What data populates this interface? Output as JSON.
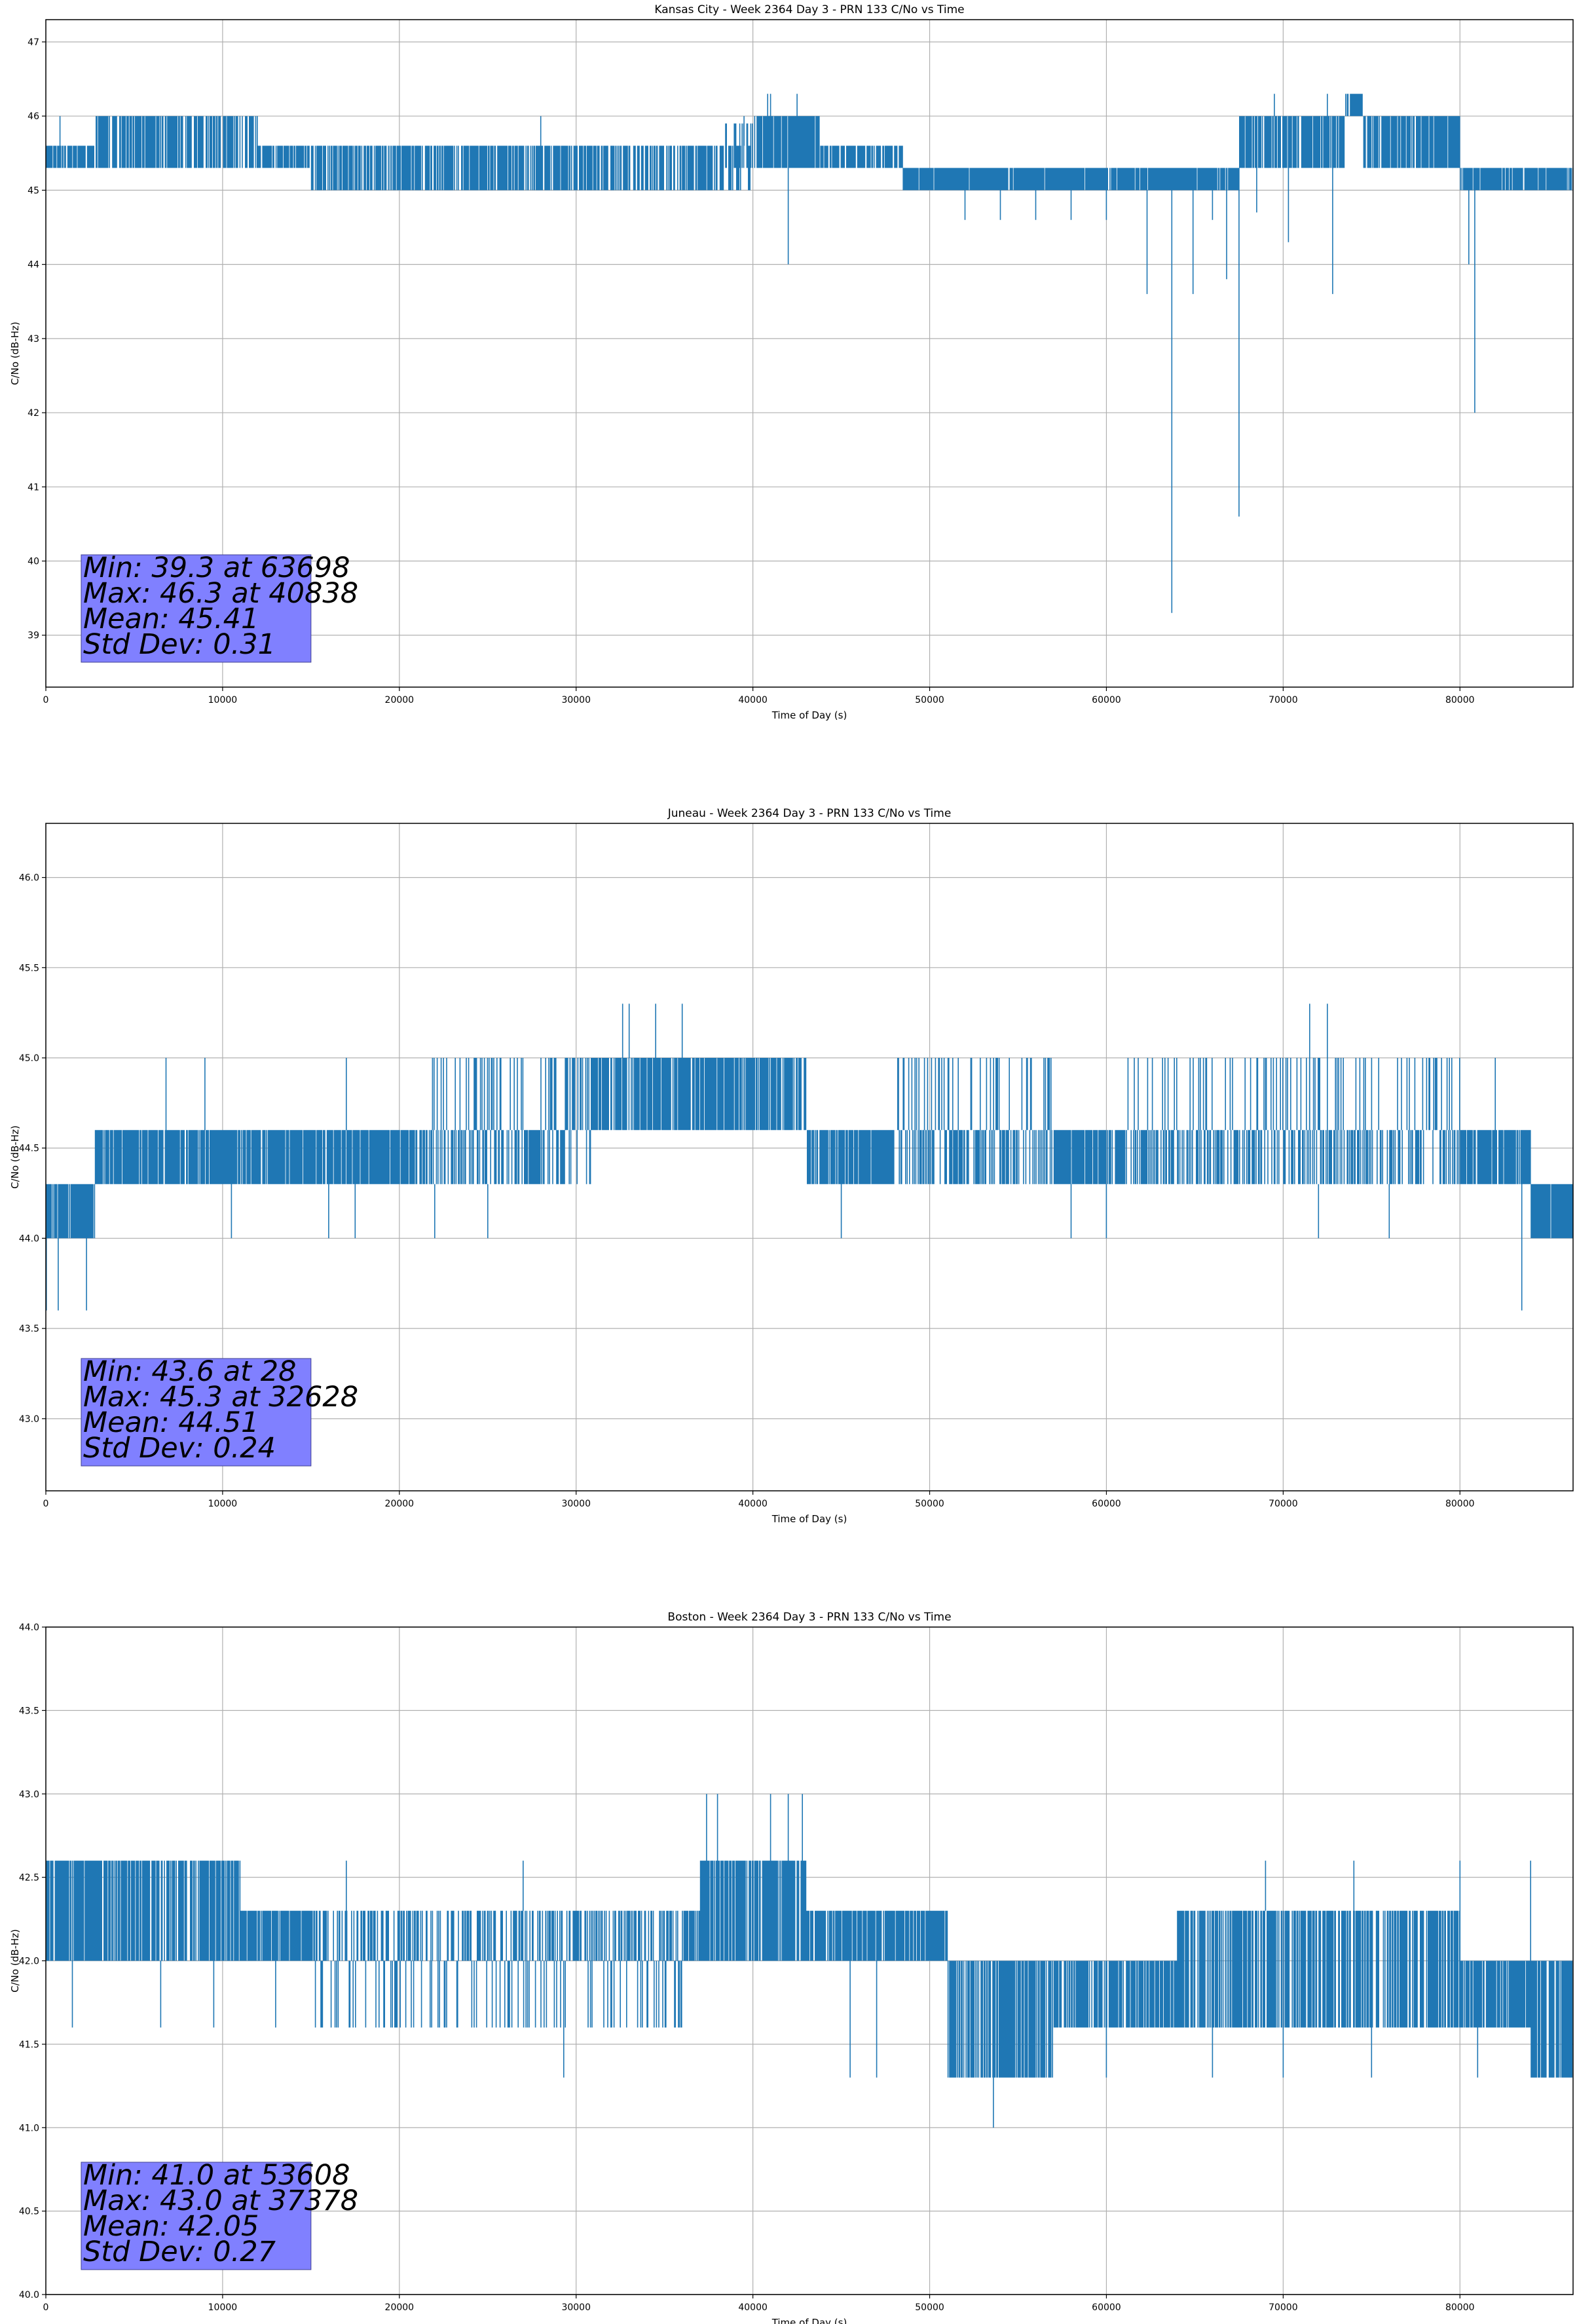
{
  "chart_data": [
    {
      "type": "line",
      "title": "Kansas City - Week 2364 Day 3 - PRN 133 C/No vs Time",
      "xlabel": "Time of Day (s)",
      "ylabel": "C/No (dB-Hz)",
      "xlim": [
        0,
        86400
      ],
      "ylim": [
        38.3,
        47.3
      ],
      "xticks": [
        0,
        10000,
        20000,
        30000,
        40000,
        50000,
        60000,
        70000,
        80000
      ],
      "yticks": [
        39,
        40,
        41,
        42,
        43,
        44,
        45,
        46,
        47
      ],
      "grid": true,
      "color": "#1f77b4",
      "bands": [
        {
          "x": [
            0,
            2800
          ],
          "lo": 45.3,
          "hi": 45.6,
          "dens": 0.8
        },
        {
          "x": [
            2800,
            12000
          ],
          "lo": 45.3,
          "hi": 46.0,
          "dens": 0.75
        },
        {
          "x": [
            12000,
            15000
          ],
          "lo": 45.3,
          "hi": 45.6,
          "dens": 0.85
        },
        {
          "x": [
            15000,
            40000
          ],
          "lo": 45.0,
          "hi": 45.6,
          "dens": 0.7
        },
        {
          "x": [
            38000,
            40000
          ],
          "lo": 45.3,
          "hi": 45.9,
          "dens": 0.6
        },
        {
          "x": [
            40000,
            43800
          ],
          "lo": 45.3,
          "hi": 46.0,
          "dens": 0.9
        },
        {
          "x": [
            43800,
            48500
          ],
          "lo": 45.3,
          "hi": 45.6,
          "dens": 0.75
        },
        {
          "x": [
            48500,
            67500
          ],
          "lo": 45.0,
          "hi": 45.3,
          "dens": 0.95
        },
        {
          "x": [
            67500,
            73500
          ],
          "lo": 45.3,
          "hi": 46.0,
          "dens": 0.85
        },
        {
          "x": [
            73500,
            74500
          ],
          "lo": 46.0,
          "hi": 46.3,
          "dens": 0.9
        },
        {
          "x": [
            74500,
            80000
          ],
          "lo": 45.3,
          "hi": 46.0,
          "dens": 0.85
        },
        {
          "x": [
            80000,
            86400
          ],
          "lo": 45.0,
          "hi": 45.3,
          "dens": 0.9
        }
      ],
      "spikes": [
        [
          42000,
          44.0
        ],
        [
          62300,
          43.6
        ],
        [
          63698,
          39.3
        ],
        [
          64900,
          43.6
        ],
        [
          66000,
          44.6
        ],
        [
          66800,
          43.8
        ],
        [
          67500,
          40.6
        ],
        [
          68500,
          44.7
        ],
        [
          70300,
          44.3
        ],
        [
          72800,
          43.6
        ],
        [
          80500,
          44.0
        ],
        [
          80838,
          42.0
        ],
        [
          52000,
          44.6
        ],
        [
          54000,
          44.6
        ],
        [
          56000,
          44.6
        ],
        [
          58000,
          44.6
        ],
        [
          60000,
          44.6
        ],
        [
          41000,
          46.3
        ],
        [
          40838,
          46.3
        ],
        [
          42500,
          46.3
        ],
        [
          39500,
          46.0
        ],
        [
          28000,
          46.0
        ],
        [
          800,
          46.0
        ],
        [
          69500,
          46.3
        ],
        [
          72500,
          46.3
        ],
        [
          74000,
          46.3
        ]
      ],
      "stats": {
        "min": "Min: 39.3 at 63698",
        "max": "Max: 46.3 at 40838",
        "mean": "Mean: 45.41",
        "std": "Std Dev: 0.31"
      }
    },
    {
      "type": "line",
      "title": "Juneau - Week 2364 Day 3 - PRN 133 C/No vs Time",
      "xlabel": "Time of Day (s)",
      "ylabel": "C/No (dB-Hz)",
      "xlim": [
        0,
        86400
      ],
      "ylim": [
        42.6,
        46.3
      ],
      "xticks": [
        0,
        10000,
        20000,
        30000,
        40000,
        50000,
        60000,
        70000,
        80000
      ],
      "yticks": [
        43.0,
        43.5,
        44.0,
        44.5,
        45.0,
        45.5,
        46.0
      ],
      "grid": true,
      "color": "#1f77b4",
      "bands": [
        {
          "x": [
            0,
            2800
          ],
          "lo": 44.0,
          "hi": 44.3,
          "dens": 0.9
        },
        {
          "x": [
            2800,
            28000
          ],
          "lo": 44.3,
          "hi": 44.6,
          "dens": 0.9
        },
        {
          "x": [
            21000,
            27000
          ],
          "lo": 44.6,
          "hi": 45.0,
          "dens": 0.35
        },
        {
          "x": [
            28000,
            43000
          ],
          "lo": 44.6,
          "hi": 45.0,
          "dens": 0.85
        },
        {
          "x": [
            28000,
            31000
          ],
          "lo": 44.3,
          "hi": 44.6,
          "dens": 0.6
        },
        {
          "x": [
            43000,
            84000
          ],
          "lo": 44.3,
          "hi": 44.6,
          "dens": 0.9
        },
        {
          "x": [
            48000,
            57000
          ],
          "lo": 44.6,
          "hi": 45.0,
          "dens": 0.45
        },
        {
          "x": [
            61000,
            80000
          ],
          "lo": 44.6,
          "hi": 45.0,
          "dens": 0.35
        },
        {
          "x": [
            84000,
            86400
          ],
          "lo": 44.0,
          "hi": 44.3,
          "dens": 0.9
        }
      ],
      "spikes": [
        [
          28,
          43.6
        ],
        [
          700,
          43.6
        ],
        [
          2300,
          43.6
        ],
        [
          83500,
          43.6
        ],
        [
          32628,
          45.3
        ],
        [
          33000,
          45.3
        ],
        [
          34500,
          45.3
        ],
        [
          36000,
          45.3
        ],
        [
          71500,
          45.3
        ],
        [
          72500,
          45.3
        ],
        [
          6800,
          45.0
        ],
        [
          9000,
          45.0
        ],
        [
          17000,
          45.0
        ],
        [
          82000,
          45.0
        ],
        [
          10500,
          44.0
        ],
        [
          16000,
          44.0
        ],
        [
          17500,
          44.0
        ],
        [
          22000,
          44.0
        ],
        [
          25000,
          44.0
        ],
        [
          45000,
          44.0
        ],
        [
          60000,
          44.0
        ],
        [
          58000,
          44.0
        ],
        [
          72000,
          44.0
        ],
        [
          76000,
          44.0
        ]
      ],
      "stats": {
        "min": "Min: 43.6 at 28",
        "max": "Max: 45.3 at 32628",
        "mean": "Mean: 44.51",
        "std": "Std Dev: 0.24"
      }
    },
    {
      "type": "line",
      "title": "Boston - Week 2364 Day 3 - PRN 133 C/No vs Time",
      "xlabel": "Time of Day (s)",
      "ylabel": "C/No (dB-Hz)",
      "xlim": [
        0,
        86400
      ],
      "ylim": [
        40.0,
        44.0
      ],
      "xticks": [
        0,
        10000,
        20000,
        30000,
        40000,
        50000,
        60000,
        70000,
        80000
      ],
      "yticks": [
        40.0,
        40.5,
        41.0,
        41.5,
        42.0,
        42.5,
        43.0,
        43.5,
        44.0
      ],
      "grid": true,
      "color": "#1f77b4",
      "bands": [
        {
          "x": [
            0,
            11000
          ],
          "lo": 42.0,
          "hi": 42.6,
          "dens": 0.8
        },
        {
          "x": [
            11000,
            37000
          ],
          "lo": 42.0,
          "hi": 42.3,
          "dens": 0.9
        },
        {
          "x": [
            15000,
            36000
          ],
          "lo": 41.6,
          "hi": 42.0,
          "dens": 0.35
        },
        {
          "x": [
            37000,
            43000
          ],
          "lo": 42.0,
          "hi": 42.6,
          "dens": 0.85
        },
        {
          "x": [
            43000,
            51000
          ],
          "lo": 42.0,
          "hi": 42.3,
          "dens": 0.9
        },
        {
          "x": [
            51000,
            57000
          ],
          "lo": 41.3,
          "hi": 42.0,
          "dens": 0.7
        },
        {
          "x": [
            57000,
            64000
          ],
          "lo": 41.6,
          "hi": 42.0,
          "dens": 0.75
        },
        {
          "x": [
            64000,
            80000
          ],
          "lo": 41.6,
          "hi": 42.3,
          "dens": 0.7
        },
        {
          "x": [
            80000,
            84000
          ],
          "lo": 41.6,
          "hi": 42.0,
          "dens": 0.85
        },
        {
          "x": [
            84000,
            86400
          ],
          "lo": 41.3,
          "hi": 42.0,
          "dens": 0.8
        }
      ],
      "spikes": [
        [
          53608,
          41.0
        ],
        [
          29300,
          41.3
        ],
        [
          45500,
          41.3
        ],
        [
          47000,
          41.3
        ],
        [
          60000,
          41.3
        ],
        [
          66000,
          41.3
        ],
        [
          70000,
          41.3
        ],
        [
          75000,
          41.3
        ],
        [
          81000,
          41.3
        ],
        [
          37378,
          43.0
        ],
        [
          38000,
          43.0
        ],
        [
          41000,
          43.0
        ],
        [
          42000,
          43.0
        ],
        [
          42800,
          43.0
        ],
        [
          1500,
          41.6
        ],
        [
          6500,
          41.6
        ],
        [
          9500,
          41.6
        ],
        [
          13000,
          41.6
        ],
        [
          27000,
          42.6
        ],
        [
          17000,
          42.6
        ],
        [
          69000,
          42.6
        ],
        [
          74000,
          42.6
        ],
        [
          80000,
          42.6
        ],
        [
          84000,
          42.6
        ]
      ],
      "stats": {
        "min": "Min: 41.0 at 53608",
        "max": "Max: 43.0 at 37378",
        "mean": "Mean: 42.05",
        "std": "Std Dev: 0.27"
      }
    }
  ]
}
